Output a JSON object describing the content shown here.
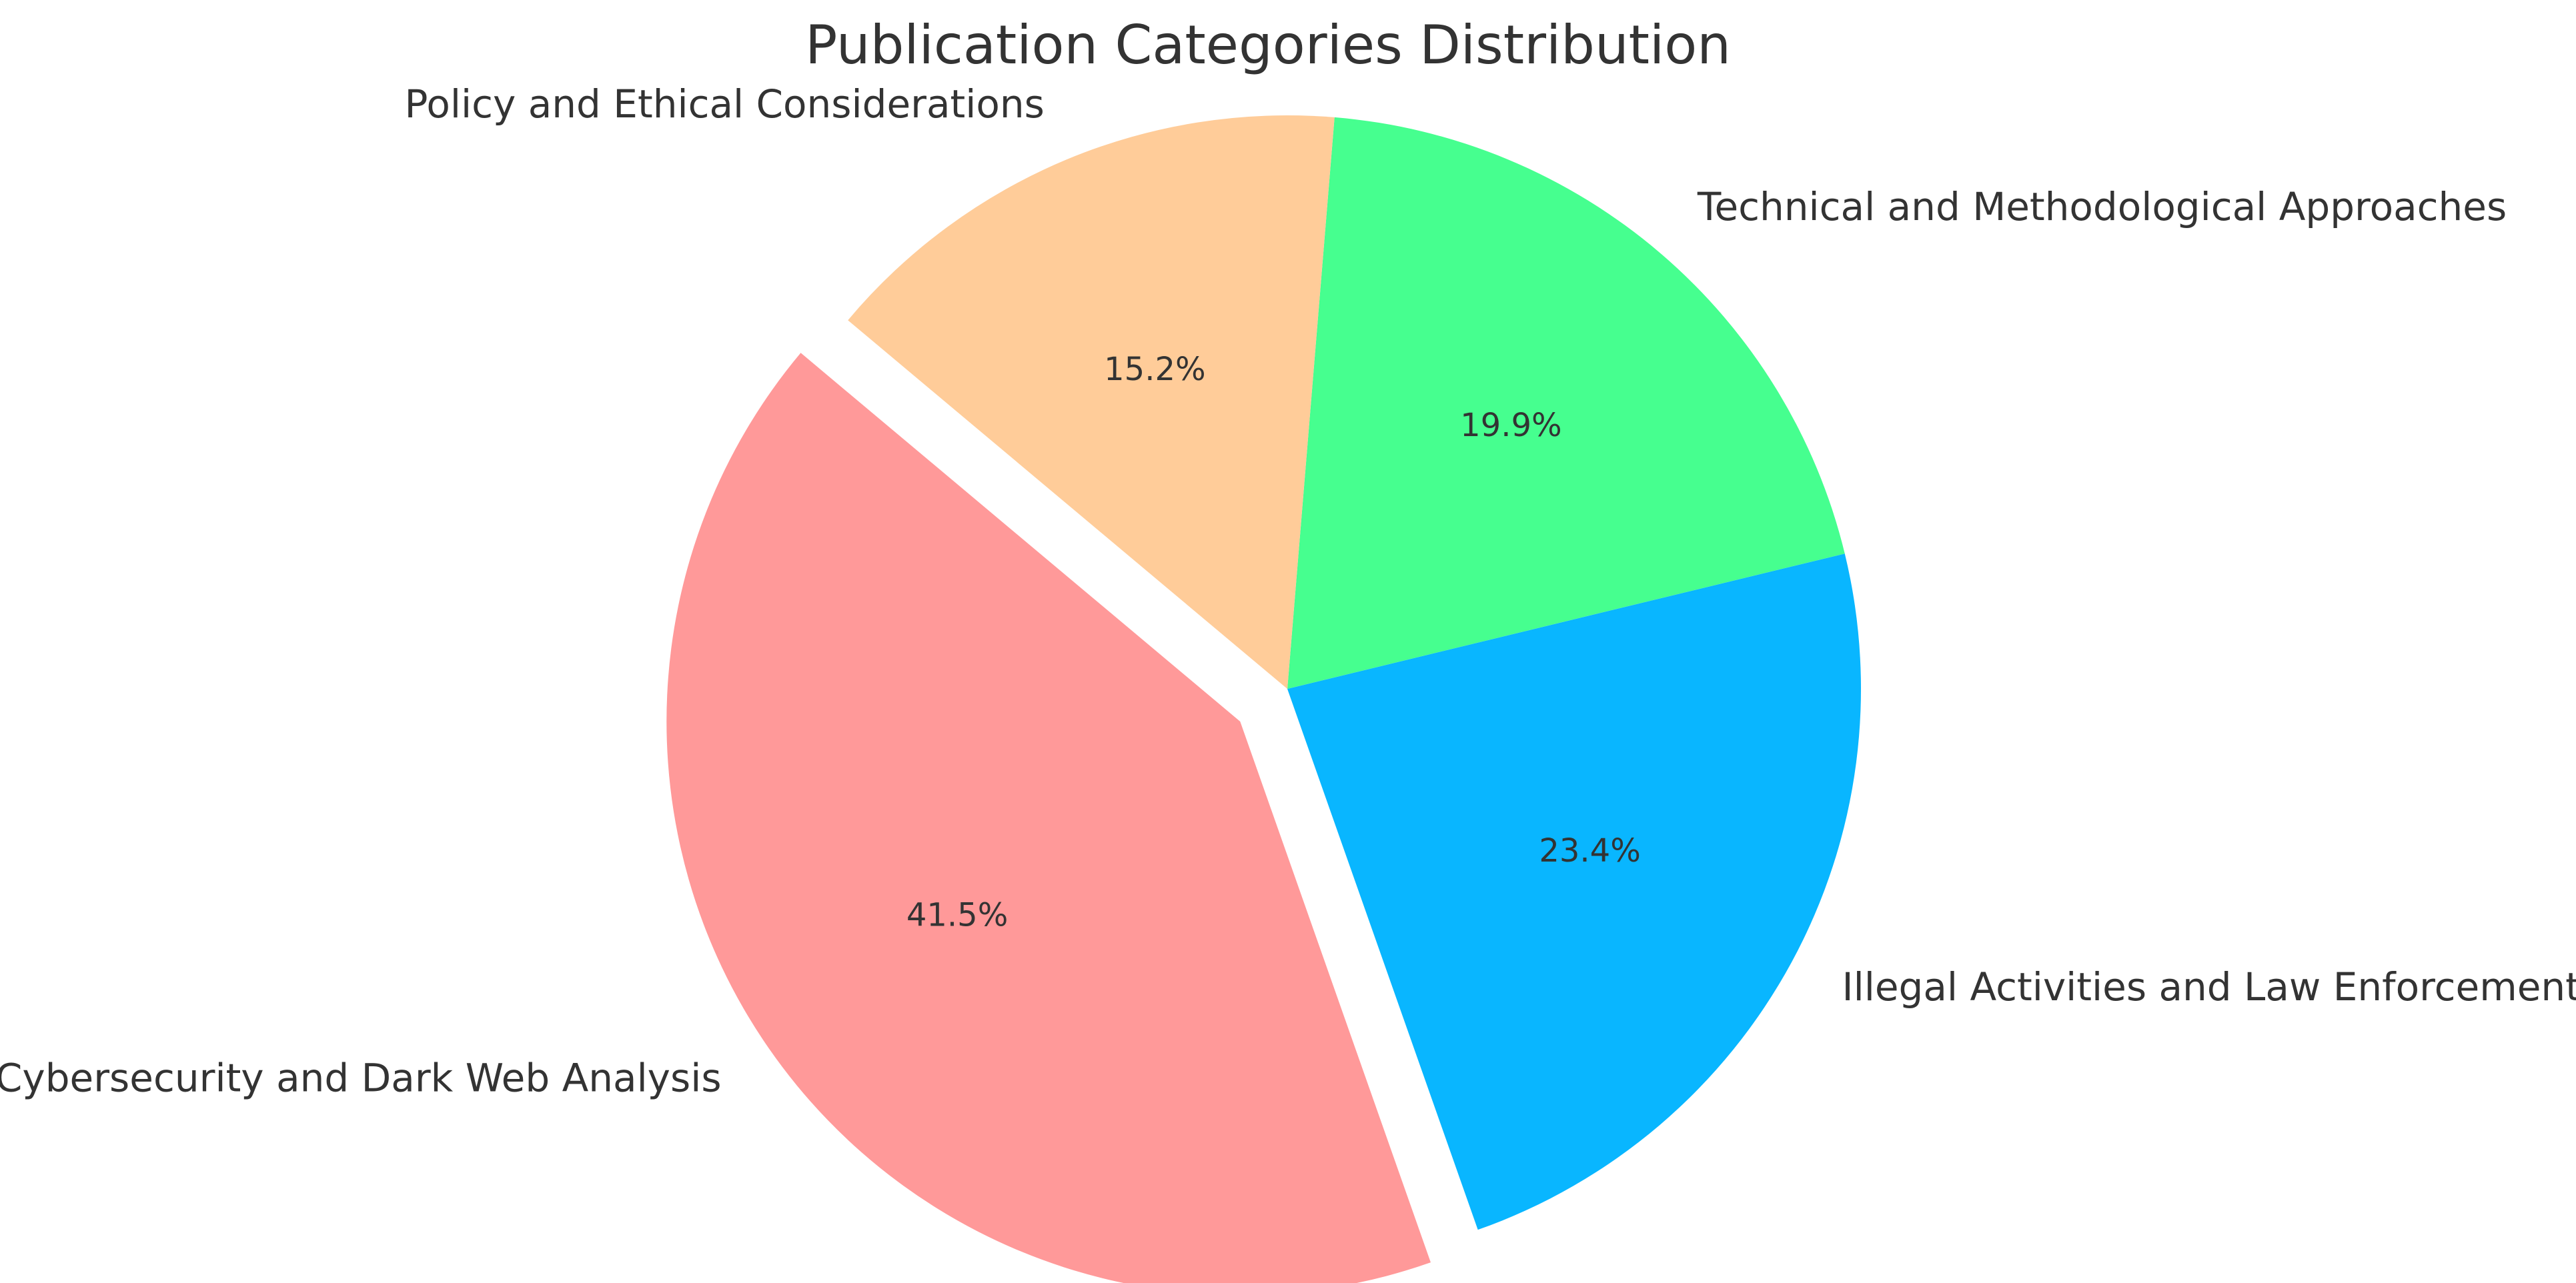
{
  "chart_data": {
    "type": "pie",
    "title": "Publication Categories Distribution",
    "start_angle_deg": 140,
    "direction": "counterclockwise",
    "slices": [
      {
        "label": "Cybersecurity and Dark Web Analysis",
        "value": 41.5,
        "display": "41.5%",
        "color": "#FF9999",
        "exploded": true
      },
      {
        "label": "Illegal Activities and Law Enforcement",
        "value": 23.4,
        "display": "23.4%",
        "color": "#09B6FF",
        "exploded": false
      },
      {
        "label": "Technical and Methodological Approaches",
        "value": 19.9,
        "display": "19.9%",
        "color": "#46FF8F",
        "exploded": false
      },
      {
        "label": "Policy and Ethical Considerations",
        "value": 15.2,
        "display": "15.2%",
        "color": "#FFCC99",
        "exploded": false
      }
    ]
  }
}
